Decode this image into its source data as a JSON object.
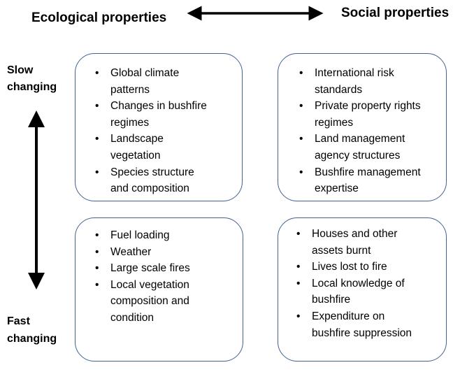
{
  "header": {
    "left": "Ecological properties",
    "right": "Social properties"
  },
  "labels": {
    "slow": [
      "Slow",
      "changing"
    ],
    "fast": [
      "Fast",
      "changing"
    ]
  },
  "boxes": [
    {
      "items": [
        [
          "Global climate",
          "patterns"
        ],
        [
          "Changes in bushfire",
          "regimes"
        ],
        [
          "Landscape",
          "vegetation"
        ],
        [
          "Species structure",
          "and composition"
        ]
      ]
    },
    {
      "items": [
        [
          "International risk",
          "standards"
        ],
        [
          "Private property rights",
          "regimes"
        ],
        [
          "Land management",
          "agency structures"
        ],
        [
          "Bushfire management",
          "expertise"
        ]
      ]
    },
    {
      "items": [
        [
          "Fuel loading"
        ],
        [
          "Weather"
        ],
        [
          "Large scale fires"
        ],
        [
          "Local vegetation",
          "composition and",
          "condition"
        ]
      ]
    },
    {
      "items": [
        [
          "Houses and other",
          "assets burnt"
        ],
        [
          "Lives lost to fire"
        ],
        [
          "Local knowledge of",
          "bushfire"
        ],
        [
          "Expenditure on",
          "bushfire suppression"
        ]
      ]
    }
  ]
}
